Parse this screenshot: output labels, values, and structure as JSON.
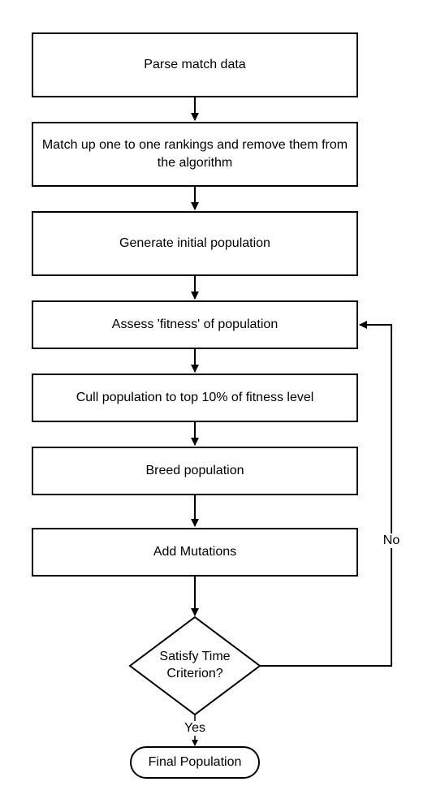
{
  "flowchart": {
    "steps": [
      {
        "label": "Parse match data"
      },
      {
        "label": "Match up one to one rankings and remove them from the algorithm"
      },
      {
        "label": "Generate initial population"
      },
      {
        "label": "Assess 'fitness' of population"
      },
      {
        "label": "Cull population to top 10% of fitness level"
      },
      {
        "label": "Breed population"
      },
      {
        "label": "Add Mutations"
      }
    ],
    "decision": {
      "label_line1": "Satisfy Time",
      "label_line2": "Criterion?"
    },
    "edge_no": "No",
    "edge_yes": "Yes",
    "terminal": {
      "label": "Final Population"
    }
  }
}
